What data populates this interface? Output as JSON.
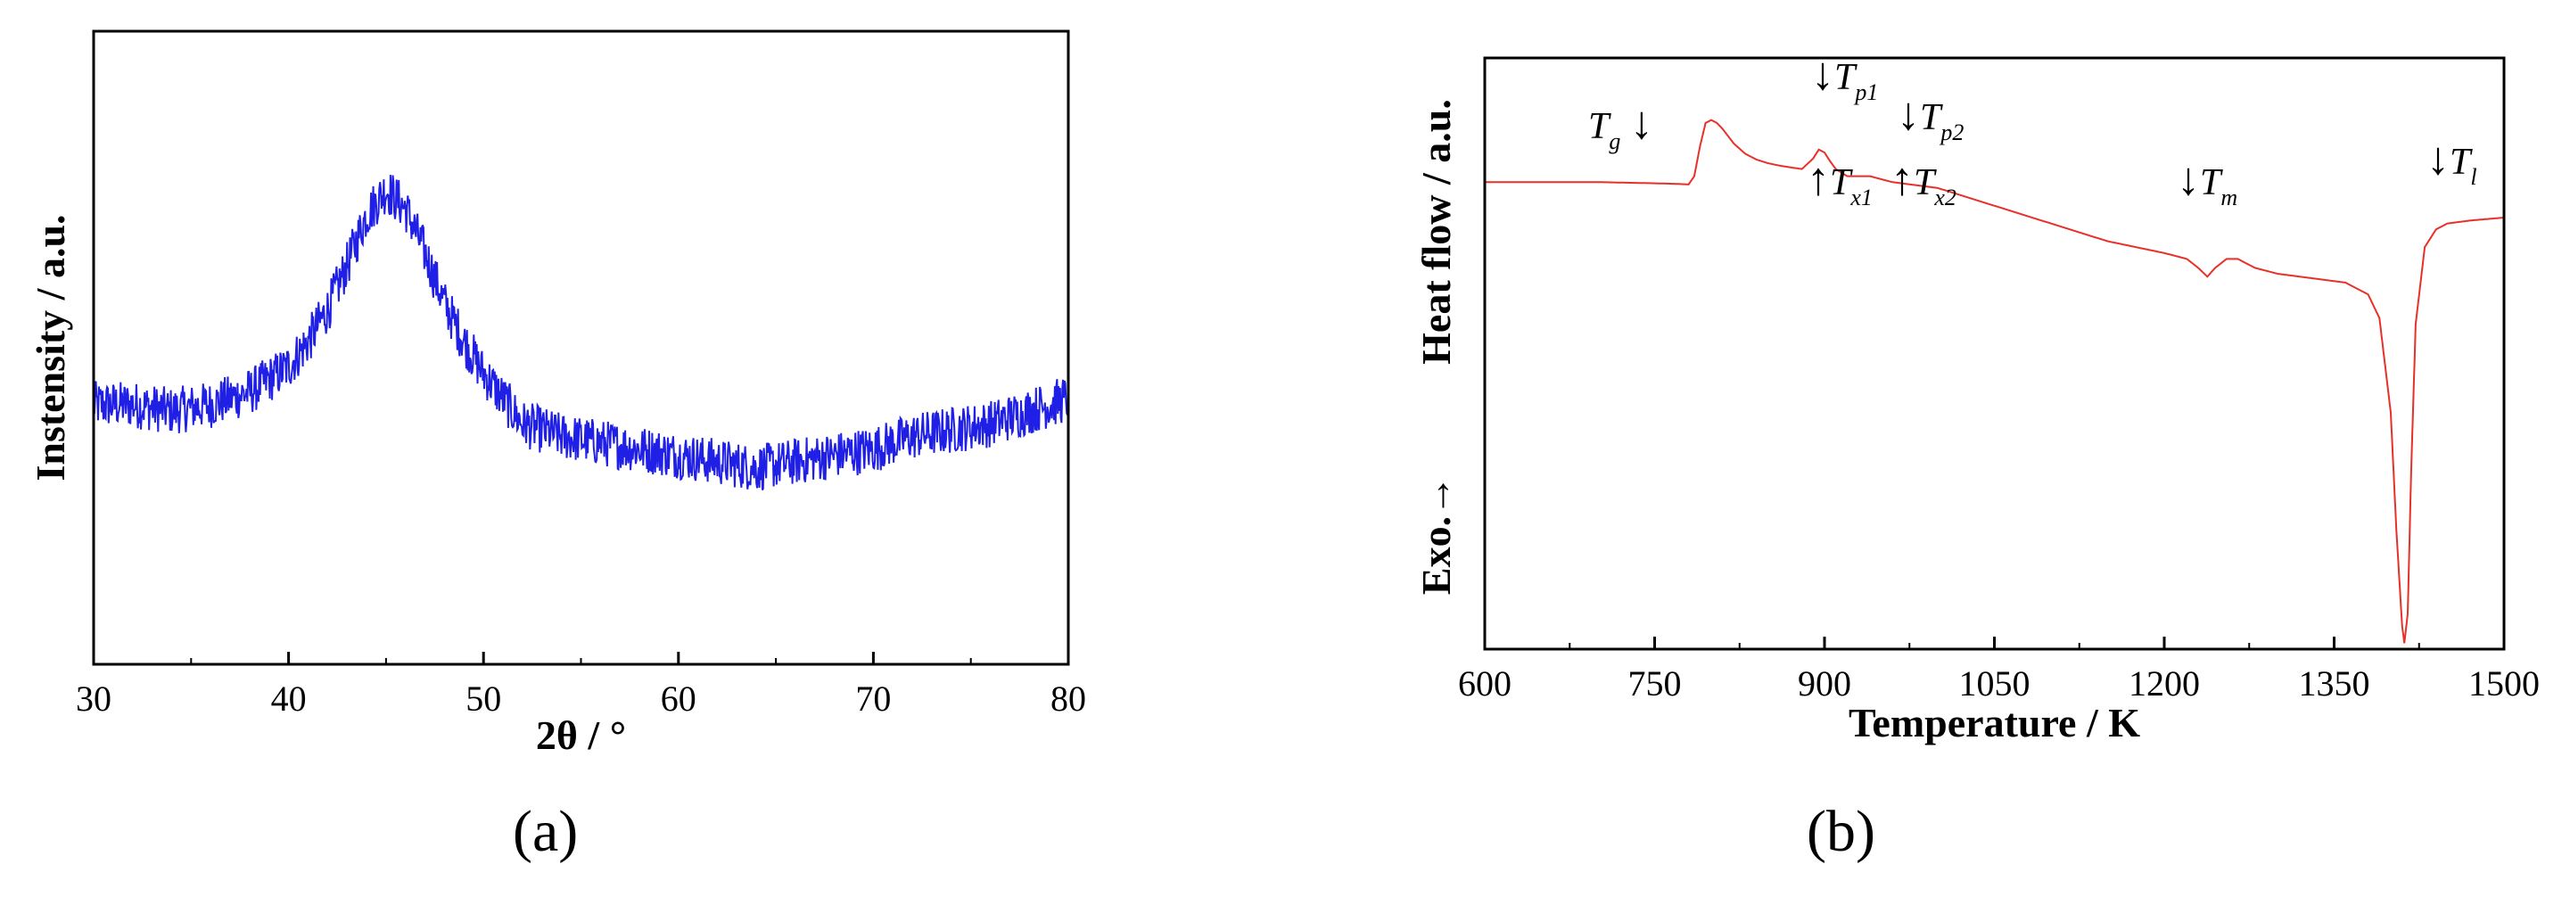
{
  "panels": {
    "a": {
      "label": "(a)"
    },
    "b": {
      "label": "(b)"
    }
  },
  "chart_data": [
    {
      "type": "line",
      "panel": "a",
      "xlabel": "2θ / °",
      "ylabel": "Instensity / a.u.",
      "xlim": [
        30,
        80
      ],
      "x_ticks": [
        30,
        40,
        50,
        60,
        70,
        80
      ],
      "y_ticks_shown": false,
      "grid": false,
      "line_color": "#1f1fe6",
      "series": [
        {
          "x": [
            30,
            32,
            34,
            36,
            38,
            40,
            41,
            42,
            43,
            44,
            45,
            46,
            47,
            48,
            49,
            50,
            51,
            52,
            54,
            56,
            58,
            60,
            62,
            64,
            66,
            68,
            70,
            72,
            74,
            76,
            78,
            80
          ],
          "y": [
            0.41,
            0.41,
            0.4,
            0.41,
            0.43,
            0.47,
            0.51,
            0.56,
            0.63,
            0.71,
            0.75,
            0.72,
            0.65,
            0.57,
            0.51,
            0.46,
            0.42,
            0.38,
            0.36,
            0.35,
            0.34,
            0.33,
            0.32,
            0.31,
            0.32,
            0.33,
            0.34,
            0.36,
            0.37,
            0.38,
            0.4,
            0.42
          ]
        }
      ]
    },
    {
      "type": "line",
      "panel": "b",
      "xlabel": "Temperature / K",
      "ylabel": "Heat flow / a.u.",
      "ylabel_extra": "Exo.→",
      "xlim": [
        600,
        1500
      ],
      "x_ticks": [
        600,
        750,
        900,
        1050,
        1200,
        1350,
        1500
      ],
      "y_ticks_shown": false,
      "grid": false,
      "line_color": "#e8302a",
      "series": [
        {
          "x": [
            600,
            650,
            700,
            750,
            770,
            780,
            785,
            790,
            795,
            800,
            805,
            810,
            820,
            830,
            840,
            850,
            860,
            870,
            880,
            890,
            895,
            900,
            905,
            910,
            920,
            940,
            960,
            1000,
            1050,
            1100,
            1150,
            1200,
            1220,
            1230,
            1238,
            1245,
            1255,
            1265,
            1280,
            1300,
            1320,
            1340,
            1360,
            1380,
            1390,
            1400,
            1405,
            1410,
            1412,
            1415,
            1418,
            1422,
            1430,
            1440,
            1450,
            1470,
            1500
          ],
          "y": [
            0.79,
            0.79,
            0.79,
            0.788,
            0.787,
            0.786,
            0.8,
            0.85,
            0.89,
            0.895,
            0.89,
            0.88,
            0.855,
            0.838,
            0.828,
            0.822,
            0.818,
            0.815,
            0.812,
            0.83,
            0.845,
            0.84,
            0.825,
            0.812,
            0.8,
            0.8,
            0.79,
            0.78,
            0.75,
            0.72,
            0.69,
            0.67,
            0.66,
            0.645,
            0.63,
            0.645,
            0.66,
            0.66,
            0.645,
            0.635,
            0.63,
            0.625,
            0.62,
            0.6,
            0.56,
            0.4,
            0.2,
            0.04,
            0.01,
            0.06,
            0.3,
            0.55,
            0.68,
            0.71,
            0.72,
            0.725,
            0.73
          ]
        }
      ],
      "annotations": [
        {
          "id": "tg",
          "sym": "T",
          "sub": "g",
          "arrow": "↓"
        },
        {
          "id": "tp1",
          "sym": "T",
          "sub": "p1",
          "arrow": "↓"
        },
        {
          "id": "tx1",
          "sym": "T",
          "sub": "x1",
          "arrow": "↑"
        },
        {
          "id": "tp2",
          "sym": "T",
          "sub": "p2",
          "arrow": "↓"
        },
        {
          "id": "tx2",
          "sym": "T",
          "sub": "x2",
          "arrow": "↑"
        },
        {
          "id": "tm",
          "sym": "T",
          "sub": "m",
          "arrow": "↓"
        },
        {
          "id": "tl",
          "sym": "T",
          "sub": "l",
          "arrow": "↓"
        }
      ]
    }
  ]
}
